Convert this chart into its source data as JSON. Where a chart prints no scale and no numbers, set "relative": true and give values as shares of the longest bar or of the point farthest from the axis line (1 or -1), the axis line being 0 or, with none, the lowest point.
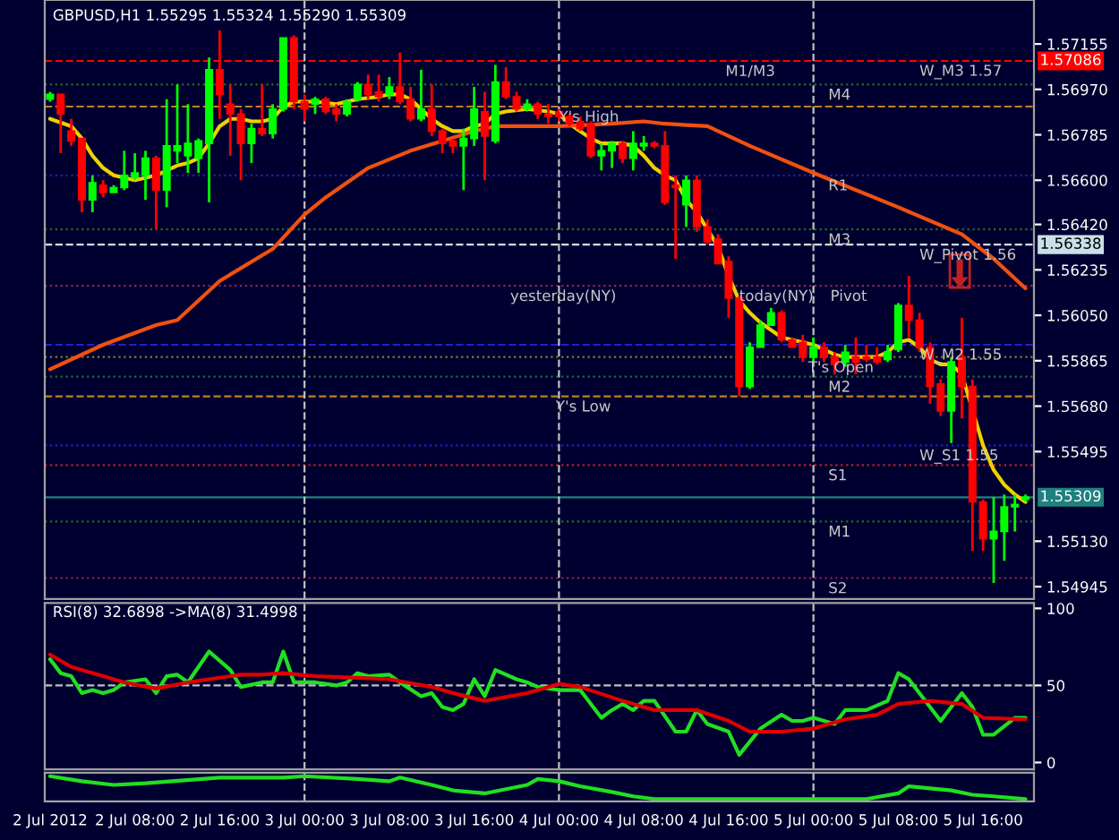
{
  "chart_data": [
    {
      "type": "candlestick",
      "title": "GBPUSD,H1 1.55295 1.55324 1.55290 1.55309",
      "x": [
        "2012-07-02T00:00",
        "2012-07-02T01:00",
        "2012-07-02T02:00",
        "2012-07-02T03:00",
        "2012-07-02T04:00",
        "2012-07-02T05:00",
        "2012-07-02T06:00",
        "2012-07-02T07:00",
        "2012-07-02T08:00",
        "2012-07-02T09:00",
        "2012-07-02T10:00",
        "2012-07-02T11:00",
        "2012-07-02T12:00",
        "2012-07-02T13:00",
        "2012-07-02T14:00",
        "2012-07-02T15:00",
        "2012-07-02T16:00",
        "2012-07-02T17:00",
        "2012-07-02T18:00",
        "2012-07-02T19:00",
        "2012-07-02T20:00",
        "2012-07-02T21:00",
        "2012-07-02T22:00",
        "2012-07-02T23:00",
        "2012-07-03T00:00",
        "2012-07-03T01:00",
        "2012-07-03T02:00",
        "2012-07-03T03:00",
        "2012-07-03T04:00",
        "2012-07-03T05:00",
        "2012-07-03T06:00",
        "2012-07-03T07:00",
        "2012-07-03T08:00",
        "2012-07-03T09:00",
        "2012-07-03T10:00",
        "2012-07-03T11:00",
        "2012-07-03T12:00",
        "2012-07-03T13:00",
        "2012-07-03T14:00",
        "2012-07-03T15:00",
        "2012-07-03T16:00",
        "2012-07-03T17:00",
        "2012-07-03T18:00",
        "2012-07-03T19:00",
        "2012-07-03T20:00",
        "2012-07-03T21:00",
        "2012-07-03T22:00",
        "2012-07-03T23:00",
        "2012-07-04T00:00",
        "2012-07-04T01:00",
        "2012-07-04T02:00",
        "2012-07-04T03:00",
        "2012-07-04T04:00",
        "2012-07-04T05:00",
        "2012-07-04T06:00",
        "2012-07-04T07:00",
        "2012-07-04T08:00",
        "2012-07-04T09:00",
        "2012-07-04T10:00",
        "2012-07-04T11:00",
        "2012-07-04T12:00",
        "2012-07-04T13:00",
        "2012-07-04T14:00",
        "2012-07-04T15:00",
        "2012-07-04T16:00",
        "2012-07-04T17:00",
        "2012-07-04T18:00",
        "2012-07-04T19:00",
        "2012-07-04T20:00",
        "2012-07-04T21:00",
        "2012-07-04T22:00",
        "2012-07-04T23:00",
        "2012-07-05T00:00",
        "2012-07-05T01:00",
        "2012-07-05T02:00",
        "2012-07-05T03:00",
        "2012-07-05T04:00",
        "2012-07-05T05:00",
        "2012-07-05T06:00",
        "2012-07-05T07:00",
        "2012-07-05T08:00",
        "2012-07-05T09:00",
        "2012-07-05T10:00",
        "2012-07-05T11:00",
        "2012-07-05T12:00",
        "2012-07-05T13:00",
        "2012-07-05T14:00",
        "2012-07-05T15:00",
        "2012-07-05T16:00",
        "2012-07-05T17:00",
        "2012-07-05T18:00",
        "2012-07-05T19:00",
        "2012-07-05T20:00"
      ],
      "ohlc": [
        [
          1.5693,
          1.5696,
          1.5692,
          1.5695
        ],
        [
          1.5695,
          1.5695,
          1.5671,
          1.5687
        ],
        [
          1.568,
          1.5685,
          1.5674,
          1.5676
        ],
        [
          1.5677,
          1.5677,
          1.5647,
          1.5652
        ],
        [
          1.5652,
          1.5662,
          1.5647,
          1.5659
        ],
        [
          1.5658,
          1.566,
          1.5653,
          1.5655
        ],
        [
          1.5655,
          1.5658,
          1.5655,
          1.5657
        ],
        [
          1.5657,
          1.5672,
          1.5656,
          1.5662
        ],
        [
          1.5661,
          1.5671,
          1.566,
          1.5663
        ],
        [
          1.5662,
          1.5672,
          1.5652,
          1.5669
        ],
        [
          1.5669,
          1.567,
          1.564,
          1.5656
        ],
        [
          1.5656,
          1.5693,
          1.5649,
          1.5674
        ],
        [
          1.5672,
          1.5699,
          1.5667,
          1.5674
        ],
        [
          1.567,
          1.5691,
          1.5663,
          1.5675
        ],
        [
          1.5669,
          1.5677,
          1.5663,
          1.5676
        ],
        [
          1.5675,
          1.571,
          1.5651,
          1.5705
        ],
        [
          1.5705,
          1.5721,
          1.5685,
          1.5695
        ],
        [
          1.5691,
          1.5699,
          1.567,
          1.5687
        ],
        [
          1.5687,
          1.5689,
          1.566,
          1.5675
        ],
        [
          1.5675,
          1.5683,
          1.5667,
          1.5681
        ],
        [
          1.5681,
          1.5699,
          1.5678,
          1.5679
        ],
        [
          1.5679,
          1.5691,
          1.5677,
          1.5689
        ],
        [
          1.5689,
          1.5718,
          1.5688,
          1.5718
        ],
        [
          1.5718,
          1.5719,
          1.5689,
          1.5692
        ],
        [
          1.5692,
          1.5695,
          1.5684,
          1.5689
        ],
        [
          1.5691,
          1.5694,
          1.5687,
          1.5693
        ],
        [
          1.5693,
          1.5694,
          1.5687,
          1.5688
        ],
        [
          1.5689,
          1.5691,
          1.5684,
          1.5687
        ],
        [
          1.5687,
          1.5693,
          1.5686,
          1.5692
        ],
        [
          1.5693,
          1.57,
          1.5692,
          1.5699
        ],
        [
          1.5699,
          1.5703,
          1.5693,
          1.5695
        ],
        [
          1.5696,
          1.5703,
          1.5692,
          1.5694
        ],
        [
          1.5695,
          1.5702,
          1.5693,
          1.5698
        ],
        [
          1.5698,
          1.5712,
          1.5691,
          1.5692
        ],
        [
          1.5693,
          1.5698,
          1.5684,
          1.5685
        ],
        [
          1.5685,
          1.5705,
          1.5684,
          1.5689
        ],
        [
          1.5689,
          1.5699,
          1.5678,
          1.568
        ],
        [
          1.568,
          1.5681,
          1.5671,
          1.5675
        ],
        [
          1.5676,
          1.5677,
          1.5671,
          1.5674
        ],
        [
          1.5674,
          1.5681,
          1.5656,
          1.5677
        ],
        [
          1.5677,
          1.5698,
          1.5674,
          1.5689
        ],
        [
          1.5688,
          1.5696,
          1.566,
          1.5678
        ],
        [
          1.5676,
          1.5707,
          1.5675,
          1.57
        ],
        [
          1.57,
          1.5706,
          1.5693,
          1.5694
        ],
        [
          1.5694,
          1.5696,
          1.5688,
          1.5689
        ],
        [
          1.5689,
          1.5693,
          1.5688,
          1.5691
        ],
        [
          1.5691,
          1.5692,
          1.5685,
          1.5687
        ],
        [
          1.5687,
          1.5691,
          1.5683,
          1.5686
        ],
        [
          1.5688,
          1.5689,
          1.5684,
          1.5686
        ],
        [
          1.5686,
          1.5687,
          1.5682,
          1.5683
        ],
        [
          1.5684,
          1.5686,
          1.568,
          1.5681
        ],
        [
          1.5683,
          1.5684,
          1.5669,
          1.567
        ],
        [
          1.567,
          1.5675,
          1.5664,
          1.5672
        ],
        [
          1.5672,
          1.5676,
          1.5665,
          1.5675
        ],
        [
          1.5675,
          1.5676,
          1.5667,
          1.5669
        ],
        [
          1.5669,
          1.568,
          1.5664,
          1.5675
        ],
        [
          1.5674,
          1.5678,
          1.5672,
          1.5675
        ],
        [
          1.5675,
          1.5676,
          1.5673,
          1.5674
        ],
        [
          1.5674,
          1.568,
          1.565,
          1.5651
        ],
        [
          1.5658,
          1.5662,
          1.5628,
          1.5657
        ],
        [
          1.565,
          1.5662,
          1.5641,
          1.566
        ],
        [
          1.566,
          1.5662,
          1.5639,
          1.5641
        ],
        [
          1.5641,
          1.5644,
          1.5634,
          1.5635
        ],
        [
          1.5636,
          1.5638,
          1.5626,
          1.5626
        ],
        [
          1.5627,
          1.5629,
          1.5604,
          1.5612
        ],
        [
          1.5612,
          1.5613,
          1.5572,
          1.5576
        ],
        [
          1.5576,
          1.5594,
          1.5575,
          1.5592
        ],
        [
          1.5592,
          1.5603,
          1.5592,
          1.5601
        ],
        [
          1.5601,
          1.5608,
          1.5601,
          1.5606
        ],
        [
          1.5606,
          1.5607,
          1.5594,
          1.5595
        ],
        [
          1.5595,
          1.5596,
          1.5592,
          1.5592
        ],
        [
          1.5594,
          1.5597,
          1.5586,
          1.5588
        ],
        [
          1.5588,
          1.5596,
          1.5586,
          1.5592
        ],
        [
          1.5592,
          1.5594,
          1.5586,
          1.5588
        ],
        [
          1.5588,
          1.559,
          1.5581,
          1.5585
        ],
        [
          1.5586,
          1.5593,
          1.5584,
          1.559
        ],
        [
          1.5588,
          1.5596,
          1.5581,
          1.5586
        ],
        [
          1.5588,
          1.5593,
          1.5586,
          1.5587
        ],
        [
          1.5588,
          1.5592,
          1.5585,
          1.5586
        ],
        [
          1.5587,
          1.5593,
          1.5586,
          1.559
        ],
        [
          1.5591,
          1.561,
          1.559,
          1.5609
        ],
        [
          1.5609,
          1.5621,
          1.5596,
          1.5603
        ],
        [
          1.5603,
          1.5606,
          1.559,
          1.5592
        ],
        [
          1.5592,
          1.5594,
          1.5569,
          1.5576
        ],
        [
          1.5577,
          1.5579,
          1.5564,
          1.5566
        ],
        [
          1.5566,
          1.5588,
          1.5553,
          1.5586
        ],
        [
          1.5588,
          1.5604,
          1.5563,
          1.5576
        ],
        [
          1.5576,
          1.5579,
          1.5509,
          1.5529
        ],
        [
          1.5529,
          1.553,
          1.5509,
          1.5514
        ],
        [
          1.5514,
          1.5531,
          1.5496,
          1.5517
        ],
        [
          1.5517,
          1.5532,
          1.5505,
          1.5527
        ],
        [
          1.5527,
          1.5532,
          1.5517,
          1.5528
        ],
        [
          1.553,
          1.5532,
          1.5529,
          1.5531
        ]
      ],
      "series": [
        {
          "type": "line",
          "color": "#f0d000",
          "x": [
            "2012-07-02T00:00",
            "2012-07-02T02:00",
            "2012-07-02T03:00",
            "2012-07-02T04:00",
            "2012-07-02T05:00",
            "2012-07-02T06:00",
            "2012-07-02T07:00",
            "2012-07-02T08:00",
            "2012-07-02T09:00",
            "2012-07-02T10:00",
            "2012-07-02T11:00",
            "2012-07-02T12:00",
            "2012-07-02T13:00",
            "2012-07-02T14:00",
            "2012-07-02T15:00",
            "2012-07-02T16:00",
            "2012-07-02T17:00",
            "2012-07-02T18:00",
            "2012-07-02T19:00",
            "2012-07-02T20:00",
            "2012-07-02T21:00",
            "2012-07-02T22:00",
            "2012-07-02T23:00",
            "2012-07-03T01:00",
            "2012-07-03T03:00",
            "2012-07-03T05:00",
            "2012-07-03T07:00",
            "2012-07-03T08:00",
            "2012-07-03T09:00",
            "2012-07-03T10:00",
            "2012-07-03T11:00",
            "2012-07-03T12:00",
            "2012-07-03T13:00",
            "2012-07-03T14:00",
            "2012-07-03T15:00",
            "2012-07-03T16:00",
            "2012-07-03T17:00",
            "2012-07-03T18:00",
            "2012-07-03T19:00",
            "2012-07-03T21:00",
            "2012-07-03T23:00",
            "2012-07-04T00:00",
            "2012-07-04T01:00",
            "2012-07-04T02:00",
            "2012-07-04T03:00",
            "2012-07-04T04:00",
            "2012-07-04T06:00",
            "2012-07-04T07:00",
            "2012-07-04T08:00",
            "2012-07-04T09:00",
            "2012-07-04T10:00",
            "2012-07-04T11:00",
            "2012-07-04T12:00",
            "2012-07-04T13:00",
            "2012-07-04T14:00",
            "2012-07-04T15:00",
            "2012-07-04T16:00",
            "2012-07-04T17:00",
            "2012-07-04T18:00",
            "2012-07-04T19:00",
            "2012-07-04T20:00",
            "2012-07-04T21:00",
            "2012-07-04T22:00",
            "2012-07-05T00:00",
            "2012-07-05T01:00",
            "2012-07-05T02:00",
            "2012-07-05T03:00",
            "2012-07-05T06:00",
            "2012-07-05T07:00",
            "2012-07-05T08:00",
            "2012-07-05T09:00",
            "2012-07-05T10:00",
            "2012-07-05T11:00",
            "2012-07-05T12:00",
            "2012-07-05T13:00",
            "2012-07-05T14:00",
            "2012-07-05T15:00",
            "2012-07-05T16:00",
            "2012-07-05T17:00",
            "2012-07-05T18:00",
            "2012-07-05T19:00",
            "2012-07-05T20:00"
          ],
          "values": [
            1.5685,
            1.5682,
            1.5677,
            1.567,
            1.5665,
            1.5662,
            1.5661,
            1.566,
            1.5661,
            1.5662,
            1.5664,
            1.5666,
            1.5667,
            1.5669,
            1.5675,
            1.5682,
            1.5685,
            1.5685,
            1.5684,
            1.5684,
            1.5685,
            1.569,
            1.5692,
            1.5692,
            1.5691,
            1.5693,
            1.5694,
            1.5695,
            1.5695,
            1.5693,
            1.5689,
            1.5685,
            1.5682,
            1.568,
            1.568,
            1.5682,
            1.5683,
            1.5687,
            1.5688,
            1.5689,
            1.5688,
            1.5687,
            1.5683,
            1.568,
            1.5677,
            1.5675,
            1.5675,
            1.5674,
            1.567,
            1.5665,
            1.5662,
            1.566,
            1.5652,
            1.5647,
            1.564,
            1.5633,
            1.5621,
            1.5611,
            1.5606,
            1.5602,
            1.5599,
            1.5596,
            1.5595,
            1.5593,
            1.5591,
            1.5589,
            1.5588,
            1.5588,
            1.559,
            1.5594,
            1.5595,
            1.5592,
            1.5587,
            1.5585,
            1.5585,
            1.5581,
            null,
            1.5552,
            1.5542,
            1.5536,
            1.5532,
            1.5529
          ]
        },
        {
          "type": "line",
          "color": "#f05010",
          "x": [
            "2012-07-02T00:00",
            "2012-07-02T05:00",
            "2012-07-02T10:00",
            "2012-07-02T12:00",
            "2012-07-02T16:00",
            "2012-07-02T21:00",
            "2012-07-03T00:00",
            "2012-07-03T02:00",
            "2012-07-03T06:00",
            "2012-07-03T10:00",
            "2012-07-03T13:00",
            "2012-07-03T16:00",
            "2012-07-03T18:00",
            "2012-07-04T00:00",
            "2012-07-04T05:00",
            "2012-07-04T08:00",
            "2012-07-04T10:00",
            "2012-07-04T14:00",
            "2012-07-04T18:00",
            "2012-07-05T00:00",
            "2012-07-05T08:00",
            "2012-07-05T14:00",
            "2012-07-05T17:00",
            "2012-07-05T20:00"
          ],
          "values": [
            1.5583,
            1.5593,
            1.5601,
            1.5603,
            1.5619,
            1.5632,
            1.5646,
            1.5653,
            1.5665,
            1.5672,
            1.5676,
            1.568,
            1.5682,
            1.5682,
            1.5683,
            1.5684,
            1.5683,
            1.5682,
            1.5674,
            1.5663,
            1.5649,
            1.5638,
            1.5628,
            1.5616
          ]
        }
      ],
      "xlim": [
        "2012-07-01T23:30",
        "2012-07-05T20:48"
      ],
      "ylim": [
        1.54895,
        1.57334
      ],
      "yticks": [
        1.57155,
        {
          "value": 1.5697,
          "label": "1.56970"
        },
        1.56785,
        {
          "value": 1.566,
          "label": "1.56600"
        },
        {
          "value": 1.5642,
          "label": "1.56420"
        },
        1.56235,
        {
          "value": 1.5605,
          "label": "1.56050"
        },
        1.55865,
        {
          "value": 1.5568,
          "label": "1.55680"
        },
        1.55495,
        {
          "value": 1.5513,
          "label": "1.55130"
        },
        1.54945
      ],
      "ref_lines": [
        {
          "axis": "y",
          "value": 1.57086,
          "label": "1.57086",
          "color": "#ff0000",
          "line_style": "dashed"
        },
        {
          "axis": "y",
          "value": 1.56338,
          "label": "1.56338",
          "color": "#c8e0e8",
          "line_style": "dashed"
        },
        {
          "axis": "y",
          "value": 1.5593,
          "color": "#2020d0",
          "line_style": "dashed"
        },
        {
          "axis": "y",
          "value": 1.5552,
          "color": "#2020d0",
          "line_style": "dotted"
        },
        {
          "axis": "y",
          "value": 1.55309,
          "label": "1.55309",
          "color": "#208080",
          "line_style": "solid"
        },
        {
          "axis": "y",
          "value": 1.5699,
          "color": "#207020",
          "line_style": "dotted"
        },
        {
          "axis": "y",
          "value": 1.569,
          "color": "#c08020",
          "line_style": "dashed"
        },
        {
          "axis": "y",
          "value": 1.5662,
          "color": "#2020a0",
          "line_style": "dotted"
        },
        {
          "axis": "y",
          "value": 1.564,
          "color": "#207020",
          "line_style": "dotted"
        },
        {
          "axis": "y",
          "value": 1.5617,
          "color": "#a02050",
          "line_style": "dotted"
        },
        {
          "axis": "y",
          "value": 1.5588,
          "color": "#808020",
          "line_style": "dotted"
        },
        {
          "axis": "y",
          "value": 1.558,
          "color": "#207020",
          "line_style": "dotted"
        },
        {
          "axis": "y",
          "value": 1.5572,
          "color": "#c08020",
          "line_style": "dashed"
        },
        {
          "axis": "y",
          "value": 1.5544,
          "color": "#c02020",
          "line_style": "dotted"
        },
        {
          "axis": "y",
          "value": 1.5521,
          "color": "#207020",
          "line_style": "dotted"
        },
        {
          "axis": "y",
          "value": 1.5498,
          "color": "#a02050",
          "line_style": "dotted"
        },
        {
          "axis": "x",
          "value": "2012-07-03T00:00",
          "color": "#c0c0c0",
          "line_style": "dashed"
        },
        {
          "axis": "x",
          "value": "2012-07-04T00:00",
          "color": "#c0c0c0",
          "line_style": "dashed"
        },
        {
          "axis": "x",
          "value": "2012-07-05T00:00",
          "color": "#c0c0c0",
          "line_style": "dashed"
        }
      ],
      "annotations": [
        {
          "text": "Y's High",
          "x": "2012-07-04T00:00",
          "y": 1.569
        },
        {
          "text": "Y's Low",
          "x": "2012-07-03T23:42",
          "y": 1.5572
        },
        {
          "text": "yesterday(NY)",
          "x": "2012-07-03T19:24",
          "y": 1.5617
        },
        {
          "text": "today(NY)",
          "x": "2012-07-04T17:00",
          "y": 1.5617
        },
        {
          "text": "Pivot",
          "x": "2012-07-05T01:36",
          "y": 1.5617
        },
        {
          "text": "M1/M3",
          "x": "2012-07-04T15:42",
          "y": 1.57086
        },
        {
          "text": "M4",
          "x": "2012-07-05T01:24",
          "y": 1.5699
        },
        {
          "text": "R1",
          "x": "2012-07-05T01:24",
          "y": 1.5662
        },
        {
          "text": "M3",
          "x": "2012-07-05T01:24",
          "y": 1.564
        },
        {
          "text": "T's Open",
          "x": "2012-07-04T23:30",
          "y": 1.5588
        },
        {
          "text": "M2",
          "x": "2012-07-05T01:24",
          "y": 1.558
        },
        {
          "text": "S1",
          "x": "2012-07-05T01:24",
          "y": 1.5544
        },
        {
          "text": "M1",
          "x": "2012-07-05T01:24",
          "y": 1.5521
        },
        {
          "text": "S2",
          "x": "2012-07-05T01:24",
          "y": 1.5498
        },
        {
          "text": "W_M3 1.57",
          "x": "2012-07-05T10:00",
          "y": 1.57086
        },
        {
          "text": "W_Pivot 1.56",
          "x": "2012-07-05T10:00",
          "y": 1.56338
        },
        {
          "text": "W_M2 1.55",
          "x": "2012-07-05T10:00",
          "y": 1.5593
        },
        {
          "text": "W_S1 1.55",
          "x": "2012-07-05T10:00",
          "y": 1.5552
        }
      ],
      "tick_labels": "y"
    },
    {
      "type": "line",
      "title": "RSI(8) 32.6898 ->MA(8) 31.4998",
      "series": [
        {
          "color": "#20e020",
          "x": [
            "2012-07-02T00:00",
            "2012-07-02T01:00",
            "2012-07-02T02:00",
            "2012-07-02T03:00",
            "2012-07-02T04:00",
            "2012-07-02T05:00",
            "2012-07-02T06:00",
            "2012-07-02T07:00",
            "2012-07-02T09:00",
            "2012-07-02T10:00",
            "2012-07-02T11:00",
            "2012-07-02T12:00",
            "2012-07-02T13:00",
            "2012-07-02T15:00",
            "2012-07-02T17:00",
            "2012-07-02T18:00",
            "2012-07-02T20:00",
            "2012-07-02T21:00",
            "2012-07-02T22:00",
            "2012-07-02T23:00",
            "2012-07-03T01:00",
            "2012-07-03T03:00",
            "2012-07-03T04:00",
            "2012-07-03T05:00",
            "2012-07-03T06:00",
            "2012-07-03T08:00",
            "2012-07-03T09:00",
            "2012-07-03T11:00",
            "2012-07-03T12:00",
            "2012-07-03T13:00",
            "2012-07-03T14:00",
            "2012-07-03T15:00",
            "2012-07-03T16:00",
            "2012-07-03T17:00",
            "2012-07-03T18:00",
            "2012-07-03T20:00",
            "2012-07-03T21:00",
            "2012-07-03T22:00",
            "2012-07-04T00:00",
            "2012-07-04T02:00",
            "2012-07-04T04:00",
            "2012-07-04T05:00",
            "2012-07-04T06:00",
            "2012-07-04T07:00",
            "2012-07-04T08:00",
            "2012-07-04T09:00",
            "2012-07-04T11:00",
            "2012-07-04T12:00",
            "2012-07-04T13:00",
            "2012-07-04T14:00",
            "2012-07-04T16:00",
            "2012-07-04T17:00",
            "2012-07-04T19:00",
            "2012-07-04T21:00",
            "2012-07-04T22:00",
            "2012-07-04T23:00",
            "2012-07-05T00:00",
            "2012-07-05T02:00",
            "2012-07-05T03:00",
            "2012-07-05T05:00",
            "2012-07-05T07:00",
            "2012-07-05T08:00",
            "2012-07-05T09:00",
            "2012-07-05T11:00",
            "2012-07-05T12:00",
            "2012-07-05T14:00",
            "2012-07-05T15:00",
            "2012-07-05T16:00",
            "2012-07-05T17:00",
            "2012-07-05T19:00",
            "2012-07-05T20:00"
          ],
          "values": [
            67,
            58,
            56,
            45,
            47,
            45,
            47,
            52,
            54,
            45,
            56,
            57,
            52,
            72,
            60,
            49,
            52,
            52,
            72,
            52,
            52,
            50,
            52,
            58,
            56,
            57,
            52,
            43,
            45,
            36,
            34,
            38,
            54,
            43,
            60,
            54,
            52,
            49,
            47,
            47,
            29,
            34,
            38,
            34,
            40,
            40,
            20,
            20,
            34,
            25,
            20,
            5,
            22,
            31,
            27,
            27,
            29,
            25,
            34,
            34,
            40,
            58,
            54,
            36,
            27,
            45,
            36,
            18,
            18,
            29,
            29
          ]
        },
        {
          "color": "#e00000",
          "x": [
            "2012-07-02T00:00",
            "2012-07-02T02:00",
            "2012-07-02T05:00",
            "2012-07-02T07:00",
            "2012-07-02T10:00",
            "2012-07-02T13:00",
            "2012-07-02T15:00",
            "2012-07-02T18:00",
            "2012-07-02T20:00",
            "2012-07-02T22:00",
            "2012-07-03T01:00",
            "2012-07-03T05:00",
            "2012-07-03T08:00",
            "2012-07-03T12:00",
            "2012-07-03T14:00",
            "2012-07-03T17:00",
            "2012-07-03T21:00",
            "2012-07-04T00:00",
            "2012-07-04T02:00",
            "2012-07-04T06:00",
            "2012-07-04T09:00",
            "2012-07-04T13:00",
            "2012-07-04T16:00",
            "2012-07-04T18:00",
            "2012-07-04T21:00",
            "2012-07-05T00:00",
            "2012-07-05T03:00",
            "2012-07-05T06:00",
            "2012-07-05T08:00",
            "2012-07-05T11:00",
            "2012-07-05T14:00",
            "2012-07-05T16:00",
            "2012-07-05T20:00"
          ],
          "values": [
            70,
            62,
            56,
            52,
            48,
            52,
            54,
            57,
            57,
            58,
            56,
            55,
            54,
            49,
            45,
            40,
            45,
            51,
            49,
            40,
            34,
            34,
            27,
            20,
            20,
            22,
            28,
            31,
            38,
            40,
            38,
            29,
            28
          ]
        }
      ],
      "xlim": [
        "2012-07-01T23:30",
        "2012-07-05T20:48"
      ],
      "ylim": [
        -4.5,
        103.4
      ],
      "yticks": [
        0,
        50,
        100
      ],
      "ref_lines": [
        {
          "axis": "y",
          "value": 50,
          "color": "#c0c0c0",
          "line_style": "dashed"
        },
        {
          "axis": "x",
          "value": "2012-07-03T00:00",
          "color": "#c0c0c0",
          "line_style": "dashed"
        },
        {
          "axis": "x",
          "value": "2012-07-04T00:00",
          "color": "#c0c0c0",
          "line_style": "dashed"
        },
        {
          "axis": "x",
          "value": "2012-07-05T00:00",
          "color": "#c0c0c0",
          "line_style": "dashed"
        }
      ],
      "tick_labels": "y"
    },
    {
      "type": "line",
      "relative": true,
      "series": [
        {
          "color": "#20e020",
          "x": [
            "2012-07-02T00:00",
            "2012-07-02T03:00",
            "2012-07-02T06:00",
            "2012-07-02T09:00",
            "2012-07-02T16:00",
            "2012-07-02T22:00",
            "2012-07-03T00:00",
            "2012-07-03T05:00",
            "2012-07-03T08:00",
            "2012-07-03T09:00",
            "2012-07-03T12:00",
            "2012-07-03T14:00",
            "2012-07-03T17:00",
            "2012-07-03T21:00",
            "2012-07-03T22:00",
            "2012-07-04T00:00",
            "2012-07-04T02:00",
            "2012-07-04T05:00",
            "2012-07-04T07:00",
            "2012-07-04T09:00",
            "2012-07-04T16:00",
            "2012-07-04T22:00",
            "2012-07-05T05:00",
            "2012-07-05T08:00",
            "2012-07-05T09:00",
            "2012-07-05T11:00",
            "2012-07-05T13:00",
            "2012-07-05T15:00",
            "2012-07-05T17:00",
            "2012-07-05T20:00"
          ],
          "values": [
            1,
            0.78,
            0.62,
            0.69,
            0.94,
            0.94,
            1,
            0.88,
            0.78,
            0.94,
            0.62,
            0.38,
            0.25,
            0.62,
            0.88,
            0.78,
            0.56,
            0.31,
            0.12,
            0,
            0,
            0,
            0,
            0.25,
            0.56,
            0.47,
            0.38,
            0.19,
            0.12,
            0
          ]
        }
      ],
      "xlim": [
        "2012-07-01T23:30",
        "2012-07-05T20:48"
      ],
      "xticks": [
        {
          "value": "2012-07-02T00:00",
          "label": "2 Jul 2012"
        },
        {
          "value": "2012-07-02T08:00",
          "label": "2 Jul 08:00"
        },
        {
          "value": "2012-07-02T16:00",
          "label": "2 Jul 16:00"
        },
        {
          "value": "2012-07-03T00:00",
          "label": "3 Jul 00:00"
        },
        {
          "value": "2012-07-03T08:00",
          "label": "3 Jul 08:00"
        },
        {
          "value": "2012-07-03T16:00",
          "label": "3 Jul 16:00"
        },
        {
          "value": "2012-07-04T00:00",
          "label": "4 Jul 00:00"
        },
        {
          "value": "2012-07-04T08:00",
          "label": "4 Jul 08:00"
        },
        {
          "value": "2012-07-04T16:00",
          "label": "4 Jul 16:00"
        },
        {
          "value": "2012-07-05T00:00",
          "label": "5 Jul 00:00"
        },
        {
          "value": "2012-07-05T08:00",
          "label": "5 Jul 08:00"
        },
        {
          "value": "2012-07-05T16:00",
          "label": "5 Jul 16:00"
        }
      ],
      "ref_lines": [
        {
          "axis": "x",
          "value": "2012-07-03T00:00",
          "color": "#c0c0c0",
          "line_style": "dashed"
        },
        {
          "axis": "x",
          "value": "2012-07-04T00:00",
          "color": "#c0c0c0",
          "line_style": "dashed"
        },
        {
          "axis": "x",
          "value": "2012-07-05T00:00",
          "color": "#c0c0c0",
          "line_style": "dashed"
        }
      ],
      "tick_labels": "x"
    }
  ]
}
